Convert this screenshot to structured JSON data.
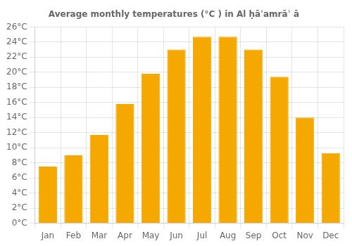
{
  "chart_data": {
    "type": "bar",
    "title": "Average monthly temperatures (°C ) in Al ḥāˈamrāʾ ā",
    "categories": [
      "Jan",
      "Feb",
      "Mar",
      "Apr",
      "May",
      "Jun",
      "Jul",
      "Aug",
      "Sep",
      "Oct",
      "Nov",
      "Dec"
    ],
    "values": [
      7.5,
      9.0,
      11.7,
      15.8,
      19.8,
      23.0,
      24.7,
      24.7,
      23.0,
      19.4,
      14.0,
      9.3
    ],
    "color": "#F5A800",
    "ylim": [
      0,
      26
    ],
    "yticks": [
      {
        "value": 0,
        "label": "0°C"
      },
      {
        "value": 2,
        "label": "2°C"
      },
      {
        "value": 4,
        "label": "4°C"
      },
      {
        "value": 6,
        "label": "6°C"
      },
      {
        "value": 8,
        "label": "8°C"
      },
      {
        "value": 10,
        "label": "10°C"
      },
      {
        "value": 12,
        "label": "12°C"
      },
      {
        "value": 14,
        "label": "14°C"
      },
      {
        "value": 16,
        "label": "16°C"
      },
      {
        "value": 18,
        "label": "18°C"
      },
      {
        "value": 20,
        "label": "20°C"
      },
      {
        "value": 22,
        "label": "22°C"
      },
      {
        "value": 24,
        "label": "24°C"
      },
      {
        "value": 26,
        "label": "26°C"
      }
    ],
    "grid": true
  }
}
